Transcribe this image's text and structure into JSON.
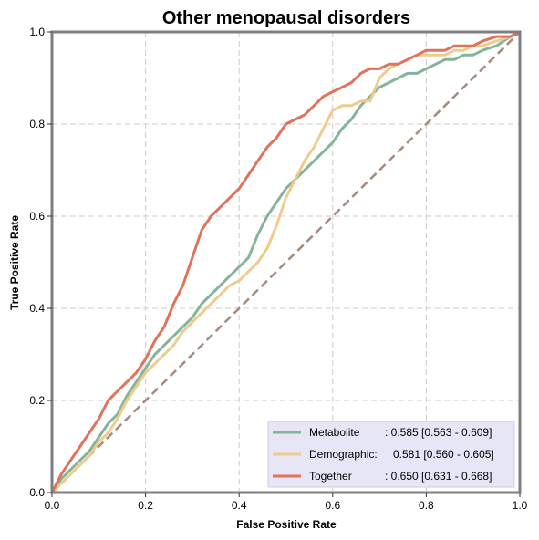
{
  "chart_data": {
    "type": "line",
    "title": "Other menopausal disorders",
    "xlabel": "False Positive Rate",
    "ylabel": "True Positive Rate",
    "xlim": [
      0,
      1
    ],
    "ylim": [
      0,
      1
    ],
    "x_ticks": [
      "0.0",
      "0.2",
      "0.4",
      "0.6",
      "0.8",
      "1.0"
    ],
    "y_ticks": [
      "0.0",
      "0.2",
      "0.4",
      "0.6",
      "0.8",
      "1.0"
    ],
    "grid": true,
    "legend_position": "bottom-right",
    "diagonal_color": "#a58a7d",
    "series": [
      {
        "name": "Metabolite",
        "label_name": "Metabolite",
        "label_stats": ": 0.585 [0.563 - 0.609]",
        "color": "#84b59a",
        "points": [
          [
            0,
            0
          ],
          [
            0.02,
            0.03
          ],
          [
            0.05,
            0.06
          ],
          [
            0.08,
            0.09
          ],
          [
            0.1,
            0.12
          ],
          [
            0.12,
            0.15
          ],
          [
            0.14,
            0.17
          ],
          [
            0.16,
            0.21
          ],
          [
            0.18,
            0.24
          ],
          [
            0.2,
            0.27
          ],
          [
            0.22,
            0.3
          ],
          [
            0.24,
            0.32
          ],
          [
            0.26,
            0.34
          ],
          [
            0.28,
            0.36
          ],
          [
            0.3,
            0.38
          ],
          [
            0.32,
            0.41
          ],
          [
            0.34,
            0.43
          ],
          [
            0.36,
            0.45
          ],
          [
            0.38,
            0.47
          ],
          [
            0.4,
            0.49
          ],
          [
            0.42,
            0.51
          ],
          [
            0.44,
            0.56
          ],
          [
            0.46,
            0.6
          ],
          [
            0.48,
            0.63
          ],
          [
            0.5,
            0.66
          ],
          [
            0.52,
            0.68
          ],
          [
            0.54,
            0.7
          ],
          [
            0.56,
            0.72
          ],
          [
            0.58,
            0.74
          ],
          [
            0.6,
            0.76
          ],
          [
            0.62,
            0.79
          ],
          [
            0.64,
            0.81
          ],
          [
            0.66,
            0.84
          ],
          [
            0.68,
            0.86
          ],
          [
            0.7,
            0.88
          ],
          [
            0.72,
            0.89
          ],
          [
            0.74,
            0.9
          ],
          [
            0.76,
            0.91
          ],
          [
            0.78,
            0.91
          ],
          [
            0.8,
            0.92
          ],
          [
            0.82,
            0.93
          ],
          [
            0.84,
            0.94
          ],
          [
            0.86,
            0.94
          ],
          [
            0.88,
            0.95
          ],
          [
            0.9,
            0.95
          ],
          [
            0.92,
            0.96
          ],
          [
            0.95,
            0.97
          ],
          [
            0.98,
            0.99
          ],
          [
            1.0,
            1.0
          ]
        ]
      },
      {
        "name": "Demographic",
        "label_name": "Demographic:",
        "label_stats": "0.581 [0.560 - 0.605]",
        "color": "#f0cc8c",
        "points": [
          [
            0,
            0
          ],
          [
            0.02,
            0.02
          ],
          [
            0.04,
            0.04
          ],
          [
            0.06,
            0.06
          ],
          [
            0.08,
            0.08
          ],
          [
            0.1,
            0.11
          ],
          [
            0.12,
            0.13
          ],
          [
            0.14,
            0.16
          ],
          [
            0.16,
            0.2
          ],
          [
            0.18,
            0.23
          ],
          [
            0.2,
            0.26
          ],
          [
            0.22,
            0.28
          ],
          [
            0.24,
            0.3
          ],
          [
            0.26,
            0.32
          ],
          [
            0.28,
            0.35
          ],
          [
            0.3,
            0.37
          ],
          [
            0.32,
            0.39
          ],
          [
            0.34,
            0.41
          ],
          [
            0.36,
            0.43
          ],
          [
            0.38,
            0.45
          ],
          [
            0.4,
            0.46
          ],
          [
            0.42,
            0.48
          ],
          [
            0.44,
            0.5
          ],
          [
            0.46,
            0.53
          ],
          [
            0.48,
            0.58
          ],
          [
            0.5,
            0.64
          ],
          [
            0.52,
            0.68
          ],
          [
            0.54,
            0.72
          ],
          [
            0.56,
            0.75
          ],
          [
            0.58,
            0.79
          ],
          [
            0.6,
            0.83
          ],
          [
            0.62,
            0.84
          ],
          [
            0.64,
            0.84
          ],
          [
            0.66,
            0.85
          ],
          [
            0.68,
            0.85
          ],
          [
            0.7,
            0.9
          ],
          [
            0.72,
            0.92
          ],
          [
            0.74,
            0.93
          ],
          [
            0.76,
            0.94
          ],
          [
            0.78,
            0.95
          ],
          [
            0.8,
            0.95
          ],
          [
            0.82,
            0.95
          ],
          [
            0.84,
            0.95
          ],
          [
            0.86,
            0.96
          ],
          [
            0.88,
            0.96
          ],
          [
            0.9,
            0.97
          ],
          [
            0.92,
            0.97
          ],
          [
            0.95,
            0.98
          ],
          [
            0.98,
            0.99
          ],
          [
            1.0,
            1.0
          ]
        ]
      },
      {
        "name": "Together",
        "label_name": "Together",
        "label_stats": ": 0.650 [0.631 - 0.668]",
        "color": "#e0735c",
        "points": [
          [
            0,
            0
          ],
          [
            0.02,
            0.04
          ],
          [
            0.04,
            0.07
          ],
          [
            0.06,
            0.1
          ],
          [
            0.08,
            0.13
          ],
          [
            0.1,
            0.16
          ],
          [
            0.12,
            0.2
          ],
          [
            0.14,
            0.22
          ],
          [
            0.16,
            0.24
          ],
          [
            0.18,
            0.26
          ],
          [
            0.2,
            0.29
          ],
          [
            0.22,
            0.33
          ],
          [
            0.24,
            0.36
          ],
          [
            0.26,
            0.41
          ],
          [
            0.28,
            0.45
          ],
          [
            0.3,
            0.51
          ],
          [
            0.32,
            0.57
          ],
          [
            0.34,
            0.6
          ],
          [
            0.36,
            0.62
          ],
          [
            0.38,
            0.64
          ],
          [
            0.4,
            0.66
          ],
          [
            0.42,
            0.69
          ],
          [
            0.44,
            0.72
          ],
          [
            0.46,
            0.75
          ],
          [
            0.48,
            0.77
          ],
          [
            0.5,
            0.8
          ],
          [
            0.52,
            0.81
          ],
          [
            0.54,
            0.82
          ],
          [
            0.56,
            0.84
          ],
          [
            0.58,
            0.86
          ],
          [
            0.6,
            0.87
          ],
          [
            0.62,
            0.88
          ],
          [
            0.64,
            0.89
          ],
          [
            0.66,
            0.91
          ],
          [
            0.68,
            0.92
          ],
          [
            0.7,
            0.92
          ],
          [
            0.72,
            0.93
          ],
          [
            0.74,
            0.93
          ],
          [
            0.76,
            0.94
          ],
          [
            0.78,
            0.95
          ],
          [
            0.8,
            0.96
          ],
          [
            0.82,
            0.96
          ],
          [
            0.84,
            0.96
          ],
          [
            0.86,
            0.97
          ],
          [
            0.88,
            0.97
          ],
          [
            0.9,
            0.97
          ],
          [
            0.92,
            0.98
          ],
          [
            0.95,
            0.99
          ],
          [
            0.98,
            0.99
          ],
          [
            1.0,
            1.0
          ]
        ]
      }
    ]
  }
}
